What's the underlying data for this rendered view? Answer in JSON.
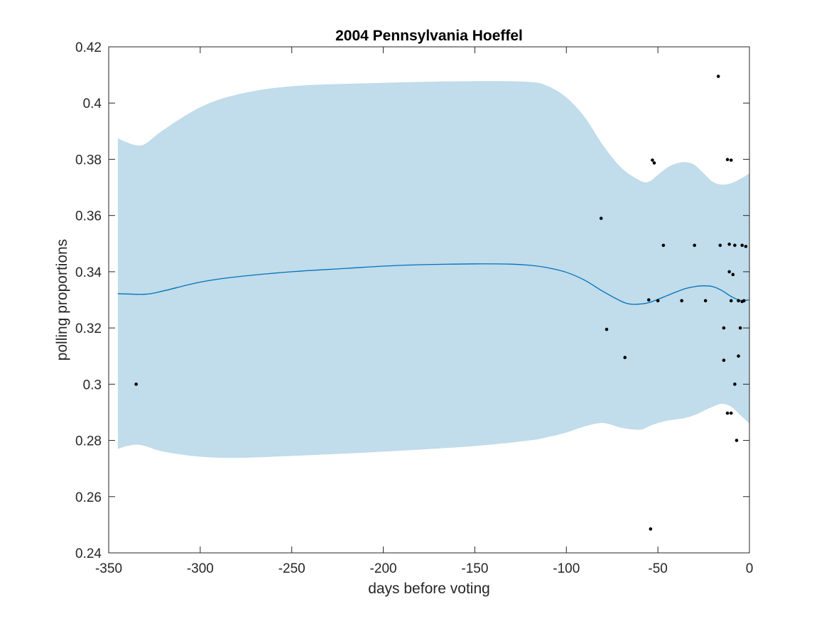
{
  "chart_data": {
    "type": "line",
    "title": "2004 Pennsylvania Hoeffel",
    "xlabel": "days before voting",
    "ylabel": "polling proportions",
    "xlim": [
      -350,
      0
    ],
    "ylim": [
      0.24,
      0.42
    ],
    "xticks": [
      -350,
      -300,
      -250,
      -200,
      -150,
      -100,
      -50,
      0
    ],
    "xtick_labels": [
      "-350",
      "-300",
      "-250",
      "-200",
      "-150",
      "-100",
      "-50",
      "0"
    ],
    "yticks": [
      0.24,
      0.26,
      0.28,
      0.3,
      0.32,
      0.34,
      0.36,
      0.38,
      0.4,
      0.42
    ],
    "ytick_labels": [
      "0.24",
      "0.26",
      "0.28",
      "0.3",
      "0.32",
      "0.34",
      "0.36",
      "0.38",
      "0.4",
      "0.42"
    ],
    "colors": {
      "band": "#c1dcea",
      "mean": "#0072bd",
      "points": "#000000",
      "axes": "#262626"
    },
    "mean": {
      "x": [
        -345,
        -330,
        -320,
        -300,
        -280,
        -250,
        -220,
        -200,
        -180,
        -150,
        -130,
        -120,
        -110,
        -100,
        -90,
        -80,
        -70,
        -65,
        -60,
        -55,
        -50,
        -45,
        -40,
        -35,
        -30,
        -25,
        -20,
        -15,
        -10,
        -5,
        0
      ],
      "y": [
        0.3322,
        0.332,
        0.3332,
        0.3363,
        0.3382,
        0.34,
        0.3412,
        0.342,
        0.3425,
        0.3428,
        0.3427,
        0.3423,
        0.3414,
        0.3398,
        0.337,
        0.333,
        0.3295,
        0.3285,
        0.3285,
        0.329,
        0.3302,
        0.3315,
        0.3328,
        0.334,
        0.3347,
        0.335,
        0.3347,
        0.3333,
        0.3312,
        0.3298,
        0.33
      ]
    },
    "upper": {
      "x": [
        -345,
        -340,
        -335,
        -330,
        -320,
        -300,
        -280,
        -250,
        -200,
        -150,
        -120,
        -110,
        -100,
        -90,
        -80,
        -70,
        -60,
        -55,
        -50,
        -45,
        -40,
        -35,
        -30,
        -25,
        -20,
        -15,
        -10,
        -5,
        0
      ],
      "y": [
        0.3875,
        0.386,
        0.385,
        0.3855,
        0.3905,
        0.3985,
        0.403,
        0.406,
        0.4072,
        0.4078,
        0.4075,
        0.406,
        0.402,
        0.395,
        0.385,
        0.377,
        0.3725,
        0.372,
        0.3745,
        0.377,
        0.3785,
        0.379,
        0.378,
        0.375,
        0.372,
        0.371,
        0.3715,
        0.373,
        0.375
      ]
    },
    "lower": {
      "x": [
        -345,
        -340,
        -335,
        -330,
        -320,
        -300,
        -280,
        -250,
        -200,
        -150,
        -120,
        -110,
        -100,
        -90,
        -80,
        -70,
        -60,
        -55,
        -50,
        -45,
        -40,
        -35,
        -30,
        -25,
        -20,
        -15,
        -10,
        -5,
        0
      ],
      "y": [
        0.277,
        0.278,
        0.2785,
        0.278,
        0.276,
        0.2742,
        0.2738,
        0.2745,
        0.276,
        0.278,
        0.28,
        0.2812,
        0.2828,
        0.285,
        0.2862,
        0.2845,
        0.2838,
        0.285,
        0.2862,
        0.287,
        0.2875,
        0.288,
        0.289,
        0.2905,
        0.292,
        0.293,
        0.292,
        0.289,
        0.286
      ]
    },
    "points": {
      "x": [
        -335,
        -81,
        -78,
        -68,
        -55,
        -54,
        -53,
        -52,
        -50,
        -47,
        -37,
        -30,
        -24,
        -17,
        -16,
        -14,
        -14,
        -12,
        -12,
        -11,
        -11,
        -10,
        -10,
        -10,
        -9,
        -8,
        -8,
        -7,
        -6,
        -6,
        -5,
        -4,
        -4,
        -3,
        -2
      ],
      "y": [
        0.3,
        0.359,
        0.3195,
        0.3095,
        0.33,
        0.2485,
        0.3797,
        0.3787,
        0.3297,
        0.3494,
        0.3297,
        0.3494,
        0.3297,
        0.4095,
        0.3494,
        0.3085,
        0.32,
        0.3799,
        0.2897,
        0.3498,
        0.34,
        0.3297,
        0.3797,
        0.2897,
        0.339,
        0.3,
        0.3494,
        0.28,
        0.31,
        0.3297,
        0.32,
        0.3494,
        0.3294,
        0.3297,
        0.349
      ]
    }
  }
}
